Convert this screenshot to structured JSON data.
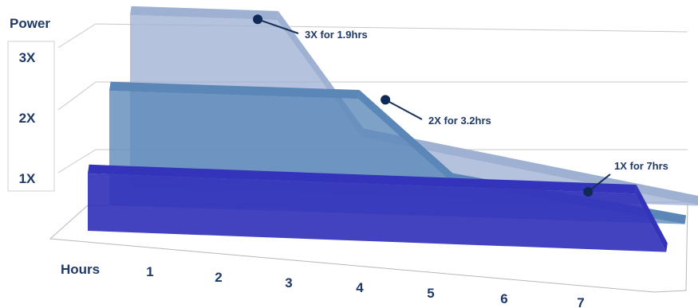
{
  "chart_data": {
    "type": "area",
    "ylabel": "Power",
    "xlabel": "Hours",
    "y_ticks": [
      "1X",
      "2X",
      "3X"
    ],
    "x_ticks": [
      "1",
      "2",
      "3",
      "4",
      "5",
      "6",
      "7"
    ],
    "series": [
      {
        "x": [
          0,
          1.9,
          3,
          7.4
        ],
        "values": [
          3,
          3,
          1,
          0
        ],
        "annotation": "3X for 1.9hrs",
        "color": "#9fb1d3"
      },
      {
        "x": [
          0,
          3.2,
          4.4,
          7.4
        ],
        "values": [
          2,
          2,
          0.6,
          0
        ],
        "annotation": "2X for 3.2hrs",
        "color": "#5a86b8"
      },
      {
        "x": [
          0,
          7,
          7.4
        ],
        "values": [
          1,
          1,
          0
        ],
        "annotation": "1X for 7hrs",
        "color": "#3333bb"
      }
    ],
    "grid": true,
    "perspective": "3d"
  }
}
